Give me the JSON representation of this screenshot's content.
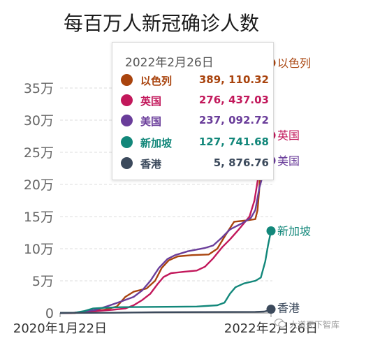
{
  "title": "每百万人新冠确诊人数",
  "tooltip": {
    "date": "2022年2月26日",
    "rows": [
      {
        "name": "以色列",
        "value": "389, 110.32",
        "color": "#a9440e"
      },
      {
        "name": "英国",
        "value": "276, 437.03",
        "color": "#c2185b"
      },
      {
        "name": "美国",
        "value": "237, 092.72",
        "color": "#6a3d9a"
      },
      {
        "name": "新加坡",
        "value": "127, 741.68",
        "color": "#12877a"
      },
      {
        "name": "香港",
        "value": "5, 876.76",
        "color": "#3c4a5c"
      }
    ]
  },
  "watermark": "大道天下智库",
  "chart_data": {
    "type": "line",
    "title": "每百万人新冠确诊人数",
    "xlabel": "",
    "ylabel": "",
    "x_tick_labels": [
      "2020年1月22日",
      "2022年2月26日"
    ],
    "x_range": [
      "2020-01-22",
      "2022-02-26"
    ],
    "y_ticks": [
      {
        "value": 0,
        "label": "0"
      },
      {
        "value": 50000,
        "label": "5万"
      },
      {
        "value": 100000,
        "label": "10万"
      },
      {
        "value": 150000,
        "label": "15万"
      },
      {
        "value": 200000,
        "label": "20万"
      },
      {
        "value": 250000,
        "label": "25万"
      },
      {
        "value": 300000,
        "label": "30万"
      },
      {
        "value": 350000,
        "label": "35万"
      }
    ],
    "ylim": [
      0,
      390000
    ],
    "grid": true,
    "series": [
      {
        "name": "以色列",
        "color": "#a9440e",
        "points": [
          [
            "2020-01-22",
            0
          ],
          [
            "2020-03-15",
            0
          ],
          [
            "2020-05-01",
            2000
          ],
          [
            "2020-07-01",
            5000
          ],
          [
            "2020-08-15",
            10000
          ],
          [
            "2020-09-15",
            25000
          ],
          [
            "2020-10-15",
            33000
          ],
          [
            "2020-12-01",
            38000
          ],
          [
            "2021-01-01",
            50000
          ],
          [
            "2021-01-25",
            70000
          ],
          [
            "2021-02-20",
            82000
          ],
          [
            "2021-03-25",
            88000
          ],
          [
            "2021-05-15",
            90000
          ],
          [
            "2021-07-15",
            91000
          ],
          [
            "2021-08-15",
            100000
          ],
          [
            "2021-09-15",
            122000
          ],
          [
            "2021-10-15",
            142000
          ],
          [
            "2021-12-01",
            144000
          ],
          [
            "2021-12-31",
            146000
          ],
          [
            "2022-01-08",
            160000
          ],
          [
            "2022-01-14",
            190000
          ],
          [
            "2022-01-20",
            240000
          ],
          [
            "2022-01-26",
            295000
          ],
          [
            "2022-02-02",
            345000
          ],
          [
            "2022-02-10",
            370000
          ],
          [
            "2022-02-18",
            383000
          ],
          [
            "2022-02-26",
            389110
          ]
        ]
      },
      {
        "name": "英国",
        "color": "#c2185b",
        "points": [
          [
            "2020-01-22",
            0
          ],
          [
            "2020-03-01",
            0
          ],
          [
            "2020-05-01",
            2000
          ],
          [
            "2020-08-01",
            5000
          ],
          [
            "2020-09-15",
            7000
          ],
          [
            "2020-10-15",
            12000
          ],
          [
            "2020-11-15",
            20000
          ],
          [
            "2020-12-15",
            30000
          ],
          [
            "2021-01-10",
            45000
          ],
          [
            "2021-02-01",
            56000
          ],
          [
            "2021-02-28",
            62000
          ],
          [
            "2021-04-15",
            64000
          ],
          [
            "2021-06-01",
            66000
          ],
          [
            "2021-07-01",
            72000
          ],
          [
            "2021-07-31",
            85000
          ],
          [
            "2021-09-01",
            102000
          ],
          [
            "2021-10-01",
            115000
          ],
          [
            "2021-11-01",
            130000
          ],
          [
            "2021-12-10",
            150000
          ],
          [
            "2021-12-28",
            175000
          ],
          [
            "2022-01-10",
            210000
          ],
          [
            "2022-01-31",
            245000
          ],
          [
            "2022-02-26",
            276437
          ]
        ]
      },
      {
        "name": "美国",
        "color": "#6a3d9a",
        "points": [
          [
            "2020-01-22",
            0
          ],
          [
            "2020-03-15",
            300
          ],
          [
            "2020-04-15",
            2000
          ],
          [
            "2020-06-01",
            5000
          ],
          [
            "2020-07-15",
            11000
          ],
          [
            "2020-09-01",
            18000
          ],
          [
            "2020-10-15",
            25000
          ],
          [
            "2020-11-15",
            35000
          ],
          [
            "2020-12-15",
            50000
          ],
          [
            "2021-01-15",
            70000
          ],
          [
            "2021-02-15",
            84000
          ],
          [
            "2021-03-15",
            90000
          ],
          [
            "2021-04-30",
            96000
          ],
          [
            "2021-06-30",
            101000
          ],
          [
            "2021-07-31",
            105000
          ],
          [
            "2021-08-31",
            117000
          ],
          [
            "2021-09-30",
            130000
          ],
          [
            "2021-11-15",
            140000
          ],
          [
            "2021-12-15",
            148000
          ],
          [
            "2021-12-31",
            160000
          ],
          [
            "2022-01-15",
            195000
          ],
          [
            "2022-01-31",
            220000
          ],
          [
            "2022-02-15",
            233000
          ],
          [
            "2022-02-26",
            237093
          ]
        ]
      },
      {
        "name": "新加坡",
        "color": "#12877a",
        "points": [
          [
            "2020-01-22",
            0
          ],
          [
            "2020-03-15",
            300
          ],
          [
            "2020-04-20",
            3000
          ],
          [
            "2020-05-20",
            7000
          ],
          [
            "2020-07-01",
            8000
          ],
          [
            "2020-09-01",
            9000
          ],
          [
            "2021-06-01",
            10000
          ],
          [
            "2021-08-15",
            12000
          ],
          [
            "2021-09-10",
            16000
          ],
          [
            "2021-09-30",
            30000
          ],
          [
            "2021-10-20",
            40000
          ],
          [
            "2021-11-20",
            46000
          ],
          [
            "2021-12-31",
            50000
          ],
          [
            "2022-01-20",
            55000
          ],
          [
            "2022-02-05",
            80000
          ],
          [
            "2022-02-15",
            105000
          ],
          [
            "2022-02-26",
            127742
          ]
        ]
      },
      {
        "name": "香港",
        "color": "#3c4a5c",
        "points": [
          [
            "2020-01-22",
            0
          ],
          [
            "2020-08-01",
            300
          ],
          [
            "2021-01-01",
            1200
          ],
          [
            "2021-12-31",
            1700
          ],
          [
            "2022-02-01",
            2200
          ],
          [
            "2022-02-15",
            3500
          ],
          [
            "2022-02-26",
            5877
          ]
        ]
      }
    ]
  }
}
